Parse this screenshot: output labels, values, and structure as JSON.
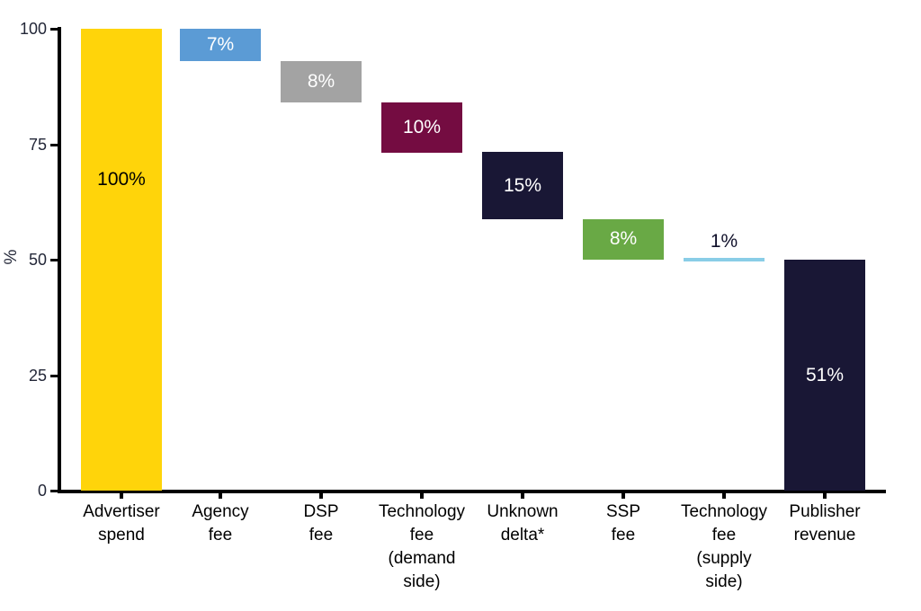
{
  "chart_data": {
    "type": "bar",
    "subtype": "waterfall",
    "title": "",
    "xlabel": "",
    "ylabel": "%",
    "ylim": [
      0,
      100
    ],
    "yticks": [
      100,
      75,
      50,
      25,
      0
    ],
    "grid": false,
    "legend": false,
    "categories": [
      "Advertiser spend",
      "Agency fee",
      "DSP fee",
      "Technology fee (demand side)",
      "Unknown delta*",
      "SSP fee",
      "Technology fee (supply side)",
      "Publisher revenue"
    ],
    "values": [
      100,
      7,
      8,
      10,
      15,
      8,
      1,
      51
    ],
    "axis_color": "#000000",
    "bars": [
      {
        "id": "advertiser-spend",
        "category_lines": "Advertiser\nspend",
        "value": 100,
        "label": "100%",
        "color": "#FFD40A",
        "label_color": "#000000",
        "draw_top": 100,
        "draw_bottom": 0,
        "label_y": 67.3
      },
      {
        "id": "agency-fee",
        "category_lines": "Agency\nfee",
        "value": 7,
        "label": "7%",
        "color": "#5B9BD5",
        "label_color": "#FFFFFF",
        "draw_top": 100,
        "draw_bottom": 93
      },
      {
        "id": "dsp-fee",
        "category_lines": "DSP\nfee",
        "value": 8,
        "label": "8%",
        "color": "#A3A3A3",
        "label_color": "#FFFFFF",
        "draw_top": 93,
        "draw_bottom": 84
      },
      {
        "id": "technology-fee-demand-side",
        "category_lines": "Technology\nfee\n(demand\nside)",
        "value": 10,
        "label": "10%",
        "color": "#740C41",
        "label_color": "#FFFFFF",
        "draw_top": 84,
        "draw_bottom": 73.2
      },
      {
        "id": "unknown-delta",
        "category_lines": "Unknown\ndelta*",
        "value": 15,
        "label": "15%",
        "color": "#191735",
        "label_color": "#FFFFFF",
        "draw_top": 73.3,
        "draw_bottom": 58.8
      },
      {
        "id": "ssp-fee",
        "category_lines": "SSP\nfee",
        "value": 8,
        "label": "8%",
        "color": "#69A945",
        "label_color": "#FFFFFF",
        "draw_top": 58.8,
        "draw_bottom": 50
      },
      {
        "id": "technology-fee-supply-side",
        "category_lines": "Technology\nfee\n(supply\nside)",
        "value": 1,
        "label": "1%",
        "color": "#89CDE7",
        "label_color": "#10102A",
        "draw_top": 50.4,
        "draw_bottom": 49.6,
        "label_y": 53.9,
        "label_position": "above"
      },
      {
        "id": "publisher-revenue",
        "category_lines": "Publisher\nrevenue",
        "value": 51,
        "label": "51%",
        "color": "#191735",
        "label_color": "#FFFFFF",
        "draw_top": 50,
        "draw_bottom": 0
      }
    ]
  }
}
